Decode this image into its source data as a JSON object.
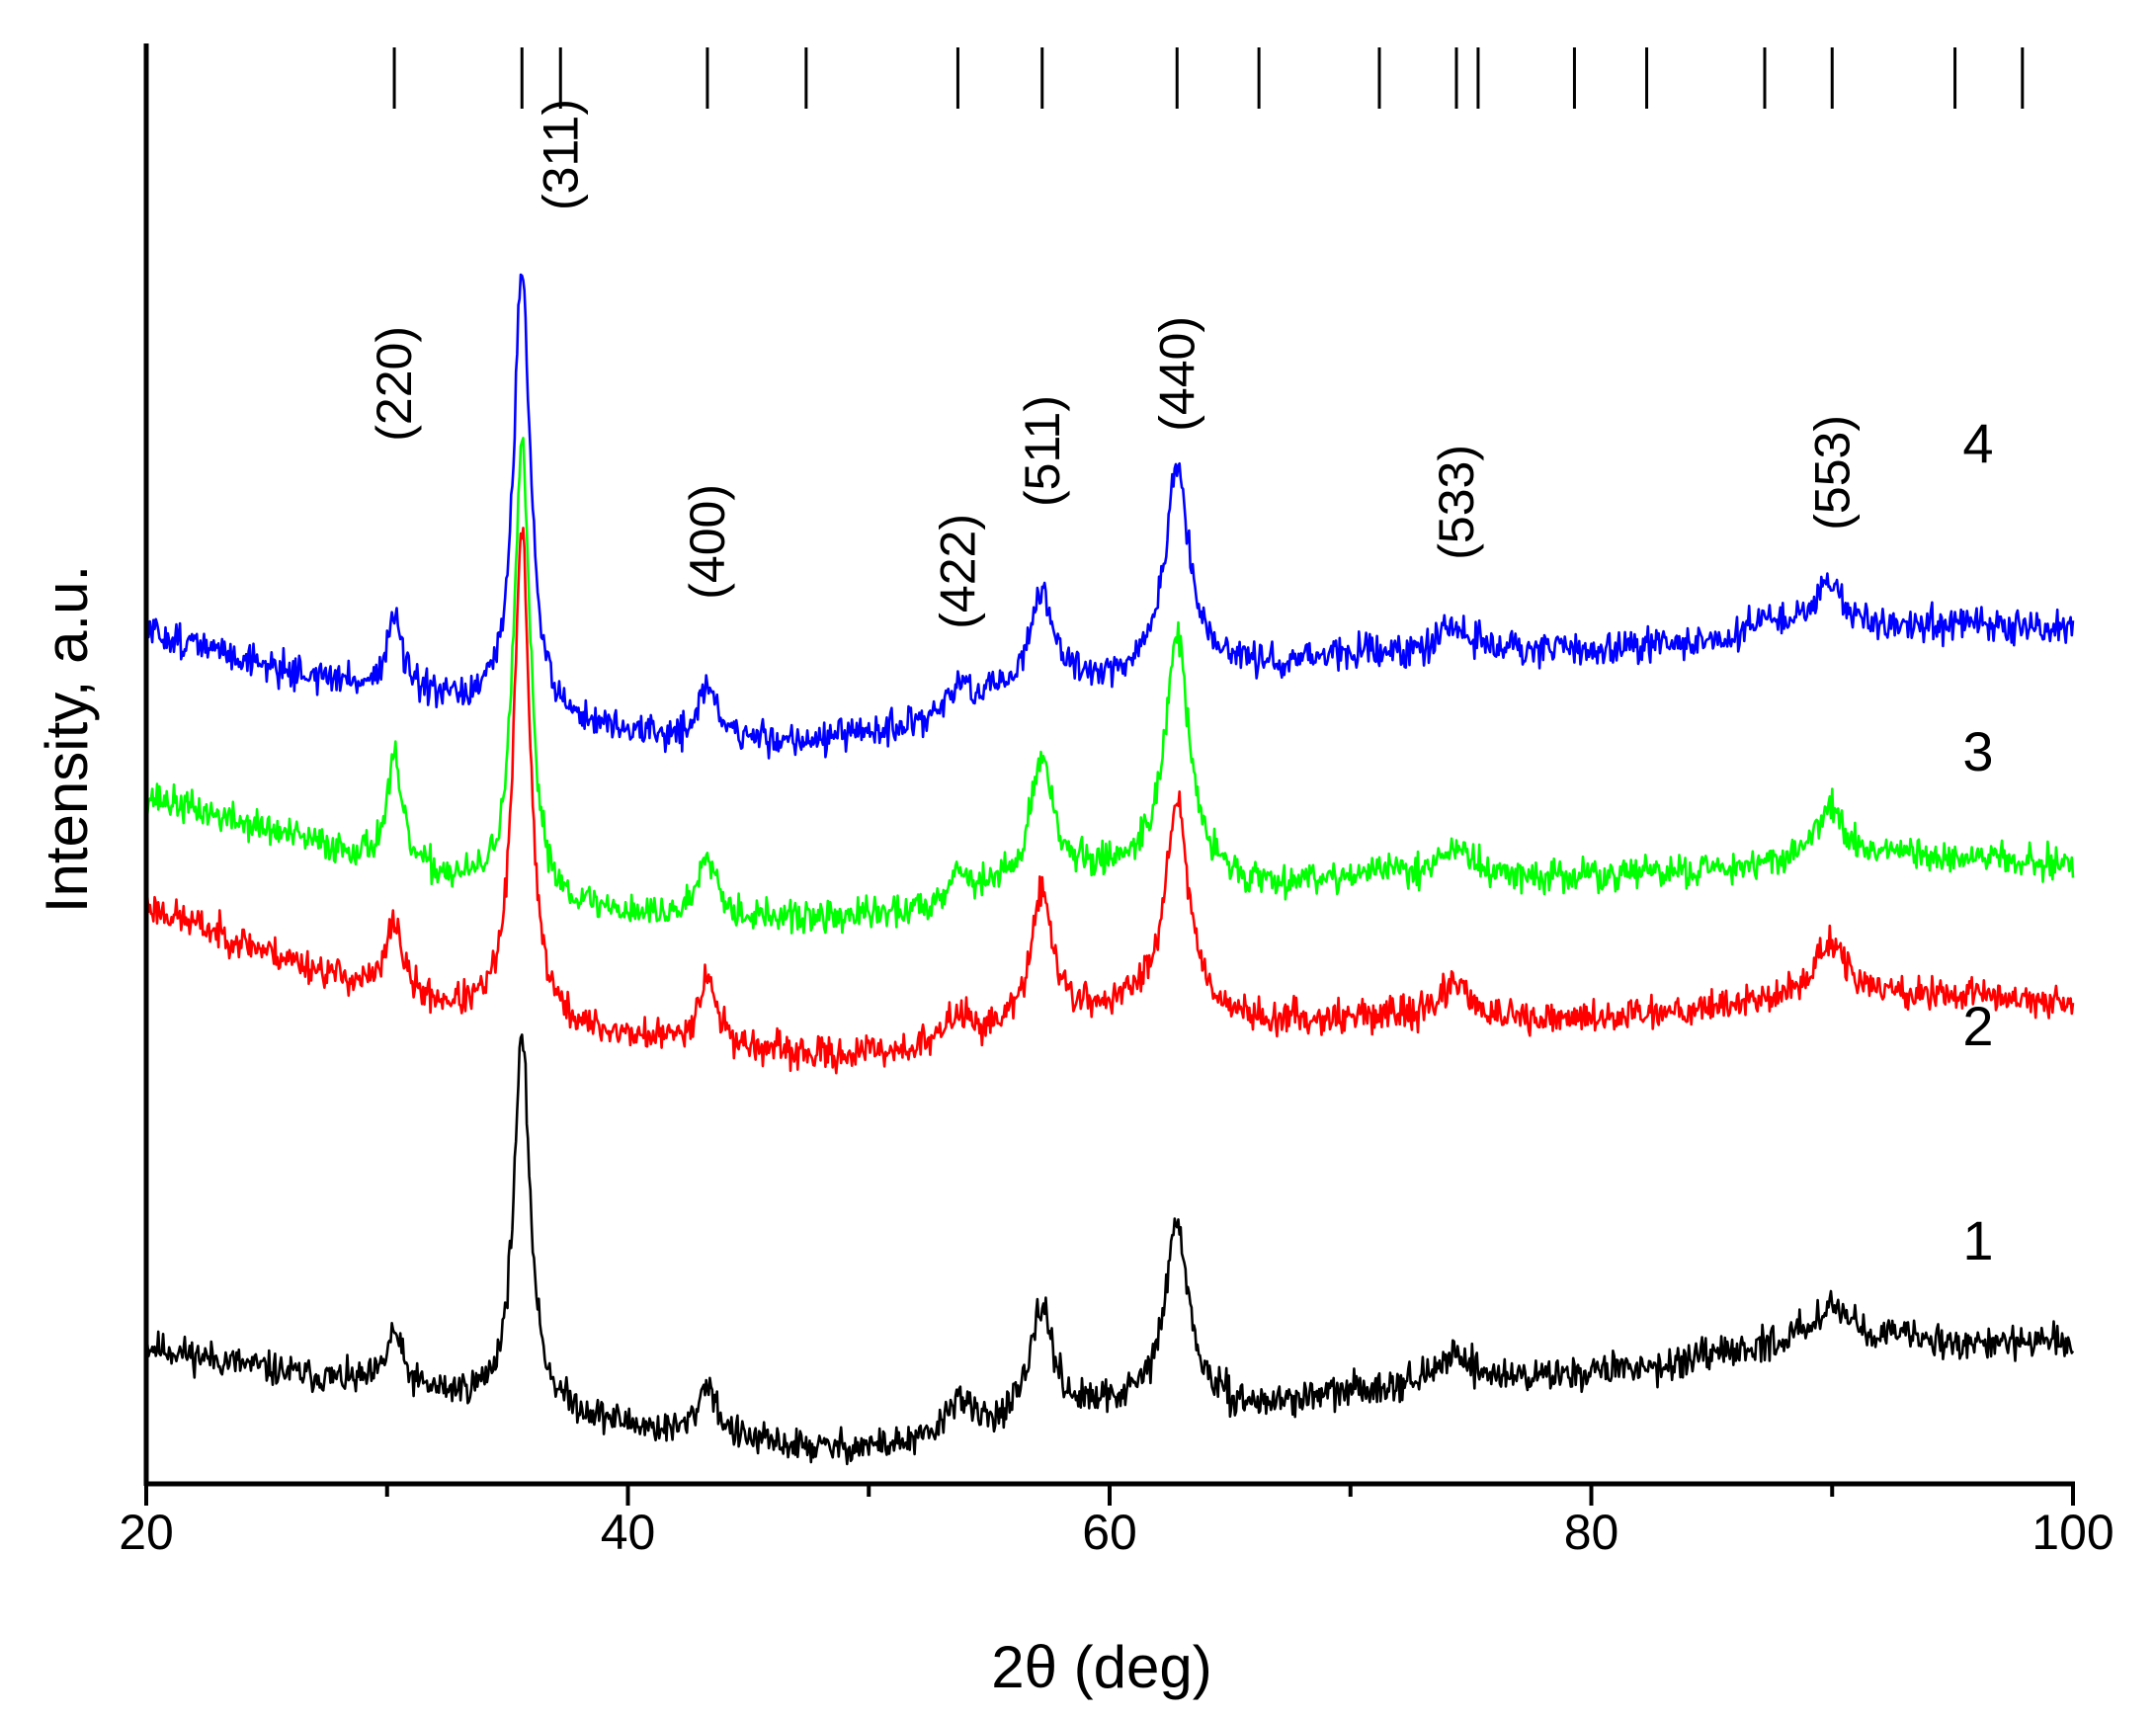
{
  "chart_data": {
    "type": "line",
    "title": "",
    "xlabel": "2θ (deg)",
    "ylabel": "Intensity, a.u.",
    "xlim": [
      20,
      100
    ],
    "xticks": [
      "20",
      "40",
      "60",
      "80",
      "100"
    ],
    "yticks": [],
    "grid": false,
    "series": [
      {
        "name": "1",
        "color": "#000000",
        "seed": 11,
        "noise": 0.075,
        "baseline": [
          [
            20,
            1.0
          ],
          [
            26,
            0.8
          ],
          [
            30,
            0.7
          ],
          [
            36,
            0.55
          ],
          [
            42,
            0.35
          ],
          [
            48,
            0.25
          ],
          [
            52,
            0.28
          ],
          [
            56,
            0.45
          ],
          [
            62,
            0.6
          ],
          [
            66,
            0.55
          ],
          [
            72,
            0.72
          ],
          [
            78,
            0.78
          ],
          [
            84,
            0.88
          ],
          [
            90,
            1.1
          ],
          [
            96,
            1.02
          ],
          [
            100,
            1.03
          ]
        ],
        "peaks": [
          [
            30.3,
            0.4
          ],
          [
            35.6,
            2.65
          ],
          [
            43.3,
            0.4
          ],
          [
            53.7,
            0.27
          ],
          [
            57.2,
            0.8
          ],
          [
            62.8,
            1.3
          ],
          [
            74.4,
            0.22
          ],
          [
            89.9,
            0.22
          ]
        ]
      },
      {
        "name": "2",
        "color": "#ff0000",
        "seed": 23,
        "noise": 0.075,
        "baseline": [
          [
            20,
            4.2
          ],
          [
            26,
            3.8
          ],
          [
            30,
            3.55
          ],
          [
            36,
            3.3
          ],
          [
            42,
            3.2
          ],
          [
            48,
            3.1
          ],
          [
            52,
            3.15
          ],
          [
            56,
            3.3
          ],
          [
            62,
            3.5
          ],
          [
            66,
            3.35
          ],
          [
            72,
            3.4
          ],
          [
            78,
            3.35
          ],
          [
            84,
            3.45
          ],
          [
            90,
            3.55
          ],
          [
            96,
            3.55
          ],
          [
            100,
            3.5
          ]
        ],
        "peaks": [
          [
            30.3,
            0.55
          ],
          [
            35.6,
            3.6
          ],
          [
            43.3,
            0.5
          ],
          [
            53.7,
            0.2
          ],
          [
            57.2,
            0.95
          ],
          [
            62.8,
            1.5
          ],
          [
            74.4,
            0.28
          ],
          [
            89.9,
            0.4
          ]
        ]
      },
      {
        "name": "3",
        "color": "#00ff00",
        "seed": 37,
        "noise": 0.075,
        "baseline": [
          [
            20,
            5.0
          ],
          [
            26,
            4.7
          ],
          [
            30,
            4.5
          ],
          [
            36,
            4.2
          ],
          [
            42,
            4.1
          ],
          [
            48,
            4.1
          ],
          [
            52,
            4.15
          ],
          [
            56,
            4.35
          ],
          [
            62,
            4.5
          ],
          [
            66,
            4.35
          ],
          [
            72,
            4.45
          ],
          [
            78,
            4.4
          ],
          [
            84,
            4.45
          ],
          [
            90,
            4.55
          ],
          [
            96,
            4.55
          ],
          [
            100,
            4.5
          ]
        ],
        "peaks": [
          [
            30.3,
            0.75
          ],
          [
            35.6,
            3.3
          ],
          [
            43.3,
            0.5
          ],
          [
            53.7,
            0.2
          ],
          [
            57.2,
            0.9
          ],
          [
            62.8,
            1.7
          ],
          [
            74.4,
            0.2
          ],
          [
            89.9,
            0.35
          ]
        ]
      },
      {
        "name": "4",
        "color": "#0000ff",
        "seed": 51,
        "noise": 0.075,
        "baseline": [
          [
            20,
            6.2
          ],
          [
            26,
            5.9
          ],
          [
            30,
            5.75
          ],
          [
            36,
            5.55
          ],
          [
            42,
            5.4
          ],
          [
            48,
            5.4
          ],
          [
            52,
            5.5
          ],
          [
            56,
            5.75
          ],
          [
            62,
            5.9
          ],
          [
            66,
            5.95
          ],
          [
            72,
            6.05
          ],
          [
            78,
            6.05
          ],
          [
            84,
            6.1
          ],
          [
            90,
            6.2
          ],
          [
            96,
            6.25
          ],
          [
            100,
            6.22
          ]
        ],
        "peaks": [
          [
            30.3,
            0.55
          ],
          [
            35.6,
            3.3
          ],
          [
            43.3,
            0.4
          ],
          [
            53.7,
            0.2
          ],
          [
            57.2,
            0.7
          ],
          [
            62.8,
            1.5
          ],
          [
            74.4,
            0.2
          ],
          [
            87.0,
            0.12
          ],
          [
            89.9,
            0.35
          ]
        ]
      }
    ],
    "reference_lines": [
      30.3,
      35.6,
      37.2,
      43.3,
      47.4,
      53.7,
      57.2,
      62.8,
      66.2,
      71.2,
      74.4,
      75.3,
      79.3,
      82.3,
      87.2,
      90.0,
      95.1,
      97.9
    ],
    "hkl_labels": [
      {
        "text": "(220)",
        "x": 30.3
      },
      {
        "text": "(311)",
        "x": 37.2
      },
      {
        "text": "(400)",
        "x": 43.3
      },
      {
        "text": "(422)",
        "x": 53.7
      },
      {
        "text": "(511)",
        "x": 57.2
      },
      {
        "text": "(440)",
        "x": 62.8
      },
      {
        "text": "(533)",
        "x": 74.4
      },
      {
        "text": "(553)",
        "x": 90.0
      }
    ]
  }
}
